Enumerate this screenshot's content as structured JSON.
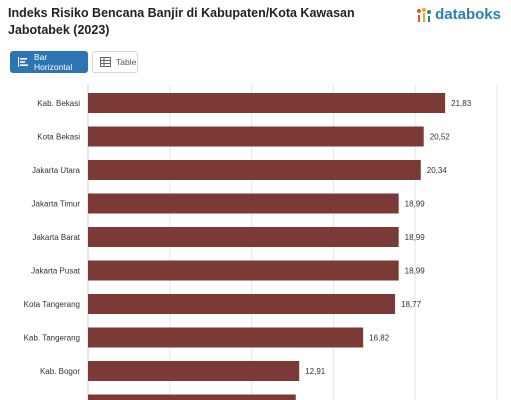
{
  "header": {
    "title": "Indeks Risiko Bencana Banjir di Kabupaten/Kota Kawasan Jabotabek (2023)",
    "brand": "databoks"
  },
  "toolbar": {
    "bar_label": "Bar Horizontal",
    "table_label": "Table"
  },
  "colors": {
    "bar": "#7b3a36",
    "accent": "#2c74b3",
    "brand": "#2b7fb0"
  },
  "icons": {
    "bar": "bar-chart-icon",
    "table": "table-icon",
    "brand": "databoks-logo-icon"
  },
  "chart_data": {
    "type": "bar",
    "orientation": "horizontal",
    "categories": [
      "Kab. Bekasi",
      "Kota Bekasi",
      "Jakarta Utara",
      "Jakarta Timur",
      "Jakarta Barat",
      "Jakarta Pusat",
      "Kota Tangerang",
      "Kab. Tangerang",
      "Kab. Bogor",
      ""
    ],
    "values": [
      21.83,
      20.52,
      20.34,
      18.99,
      18.99,
      18.99,
      18.77,
      16.82,
      12.91,
      12.7
    ],
    "value_labels": [
      "21,83",
      "20,52",
      "20,34",
      "18,99",
      "18,99",
      "18,99",
      "18,77",
      "16,82",
      "12,91",
      ""
    ],
    "xlim": [
      0,
      25
    ],
    "grid": true,
    "legend": "none"
  }
}
